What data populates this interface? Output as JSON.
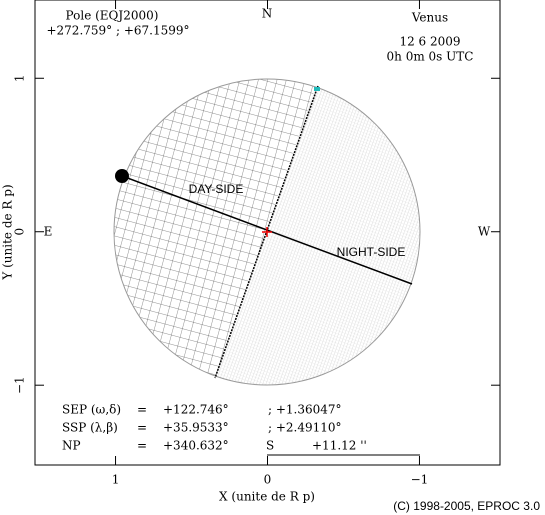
{
  "chart_data": {
    "type": "globe",
    "title": "Venus",
    "date": "12 6 2009",
    "time": "0h 0m 0s UTC",
    "pole_label": "Pole (EQJ2000)",
    "pole_value": "+272.759°  ; +67.1599°",
    "compass": {
      "north": "N",
      "east": "E",
      "west": "W"
    },
    "day_side": "DAY-SIDE",
    "night_side": "NIGHT-SIDE",
    "xlabel": "X (unite de R p)",
    "ylabel": "Y (unite de R p)",
    "xlim": [
      1.53,
      -1.53
    ],
    "ylim": [
      -1.52,
      1.51
    ],
    "xticks": [
      1,
      0,
      {
        "value": -1,
        "label": "−1"
      }
    ],
    "yticks": [
      1,
      0,
      {
        "value": -1,
        "label": "−1"
      }
    ],
    "info": [
      [
        "SEP (ω,δ)",
        "=",
        "+122.746°",
        "; +1.36047°"
      ],
      [
        "SSP (λ,β)",
        "=",
        "+35.9533°",
        "; +2.49110°"
      ],
      [
        "NP",
        "=",
        "+340.632°"
      ]
    ],
    "scale_label": "S",
    "scale_value": "+11.12 ''",
    "copyright": "(C) 1998-2005, EPROC 3.0"
  }
}
